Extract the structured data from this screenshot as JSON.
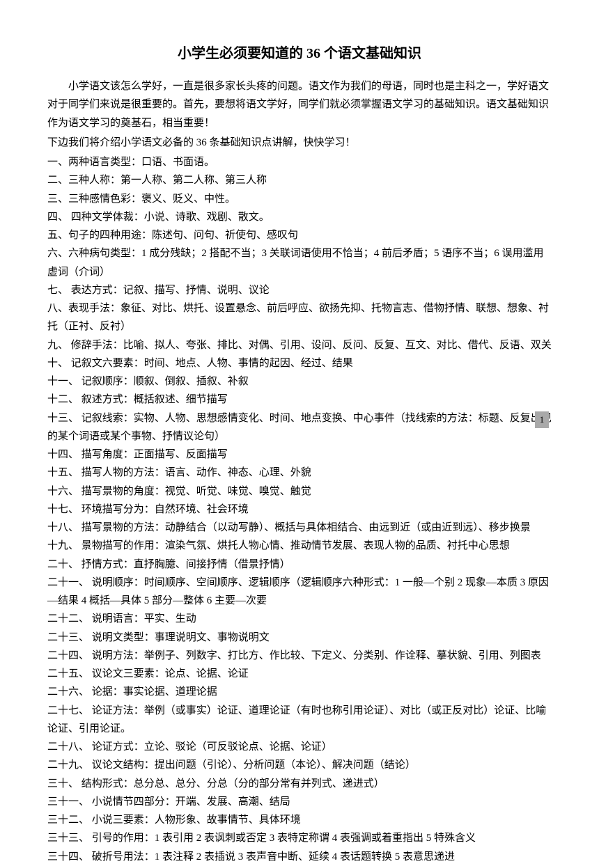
{
  "title": "小学生必须要知道的 36 个语文基础知识",
  "intro": "小学语文该怎么学好，一直是很多家长头疼的问题。语文作为我们的母语，同时也是主科之一，学好语文对于同学们来说是很重要的。首先，要想将语文学好，同学们就必须掌握语文学习的基础知识。语文基础知识作为语文学习的奠基石，相当重要！",
  "intro2": "下边我们将介绍小学语文必备的 36 条基础知识点讲解，快快学习！",
  "items": [
    "一、两种语言类型：口语、书面语。",
    "二、三种人称：第一人称、第二人称、第三人称",
    "三、三种感情色彩：褒义、贬义、中性。",
    "四、 四种文学体裁：小说、诗歌、戏剧、散文。",
    "五、句子的四种用途：陈述句、问句、祈使句、感叹句",
    "六、六种病句类型：1 成分残缺；2 搭配不当；3 关联词语使用不恰当；4 前后矛盾；5 语序不当；6 误用滥用虚词（介词）",
    "七、 表达方式：记叙、描写、抒情、说明、议论",
    "八、表现手法：象征、对比、烘托、设置悬念、前后呼应、欲扬先抑、托物言志、借物抒情、联想、想象、衬托（正衬、反衬）",
    "九、 修辞手法：比喻、拟人、夸张、排比、对偶、引用、设问、反问、反复、互文、对比、借代、反语、双关",
    "十、 记叙文六要素：时间、地点、人物、事情的起因、经过、结果",
    "十一、 记叙顺序：顺叙、倒叙、插叙、补叙",
    "十二、 叙述方式：概括叙述、细节描写",
    "十三、 记叙线索：实物、人物、思想感情变化、时间、地点变换、中心事件（找线索的方法：标题、反复出现的某个词语或某个事物、抒情议论句）",
    "十四、 描写角度：正面描写、反面描写",
    "十五、 描写人物的方法：语言、动作、神态、心理、外貌",
    "十六、 描写景物的角度：视觉、听觉、味觉、嗅觉、触觉",
    "十七、 环境描写分为：自然环境、社会环境",
    "十八、 描写景物的方法：动静结合（以动写静）、概括与具体相结合、由远到近（或由近到远）、移步换景",
    "十九、 景物描写的作用：渲染气氛、烘托人物心情、推动情节发展、表现人物的品质、衬托中心思想",
    "二十、 抒情方式：直抒胸臆、间接抒情（借景抒情）",
    "二十一、 说明顺序：时间顺序、空间顺序、逻辑顺序（逻辑顺序六种形式：1 一般—个别 2 现象—本质 3 原因—结果 4 概括—具体 5 部分—整体 6 主要—次要",
    "二十二、 说明语言：平实、生动",
    "二十三、 说明文类型：事理说明文、事物说明文",
    "二十四、 说明方法：举例子、列数字、打比方、作比较、下定义、分类别、作诠释、摹状貌、引用、列图表",
    "二十五、 议论文三要素：论点、论据、论证",
    "二十六、 论据：事实论据、道理论据",
    "二十七、 论证方法：举例（或事实）论证、道理论证（有时也称引用论证）、对比（或正反对比）论证、比喻论证、引用论证。",
    "二十八、 论证方式：立论、驳论（可反驳论点、论据、论证）",
    "二十九、 议论文结构：提出问题（引论）、分析问题（本论）、解决问题（结论）",
    "三十、 结构形式：总分总、总分、分总（分的部分常有并列式、递进式）",
    "三十一、 小说情节四部分：开端、发展、高潮、结局",
    "三十二、 小说三要素：人物形象、故事情节、具体环境",
    "三十三、 引号的作用：1 表引用 2 表讽刺或否定 3 表特定称谓 4 表强调或着重指出 5 特殊含义",
    "三十四、 破折号用法：1 表注释 2 表插说 3 表声音中断、延续 4 表话题转换 5 表意思递进"
  ],
  "pageNumber": "1"
}
